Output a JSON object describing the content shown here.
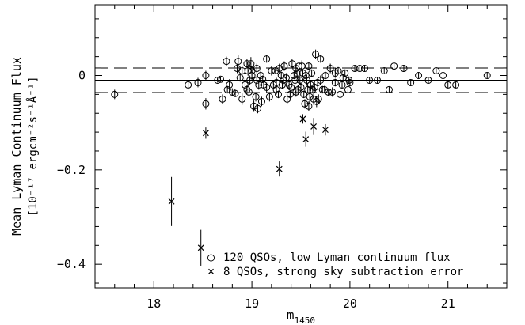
{
  "chart_data": {
    "type": "scatter",
    "xlabel_main": "m",
    "xlabel_sub": "1450",
    "ylabel_line1": "Mean Lyman Continuum Flux",
    "ylabel_line2": "[10⁻¹⁷ ergcm⁻²s⁻¹Å⁻¹]",
    "xlim": [
      17.4,
      21.6
    ],
    "ylim": [
      -0.45,
      0.15
    ],
    "x_ticks": [
      18,
      19,
      20,
      21
    ],
    "x_tick_labels": [
      "18",
      "19",
      "20",
      "21"
    ],
    "y_ticks": [
      0,
      -0.2,
      -0.4
    ],
    "y_tick_labels": [
      "0",
      "−0.2",
      "−0.4"
    ],
    "reference_lines": [
      {
        "style": "solid",
        "y": -0.01
      },
      {
        "style": "dashed",
        "y": 0.016
      },
      {
        "style": "dashed",
        "y": -0.036
      }
    ],
    "legend": {
      "position": "bottom-right",
      "entries": [
        {
          "marker": "○",
          "label": "120 QSOs, low Lyman continuum flux"
        },
        {
          "marker": "×",
          "label": "8 QSOs, strong sky subtraction error"
        }
      ]
    },
    "series": [
      {
        "marker": "circle",
        "points": [
          [
            17.6,
            -0.04,
            0.01
          ],
          [
            18.35,
            -0.02,
            0.01
          ],
          [
            18.45,
            -0.015,
            0.01
          ],
          [
            18.53,
            -0.06,
            0.012
          ],
          [
            18.53,
            0.0,
            0.01
          ],
          [
            18.65,
            -0.01,
            0.005
          ],
          [
            18.68,
            -0.008,
            0.005
          ],
          [
            18.7,
            -0.05,
            0.01
          ],
          [
            18.74,
            0.03,
            0.01
          ],
          [
            18.75,
            -0.03,
            0.008
          ],
          [
            18.77,
            -0.02,
            0.012
          ],
          [
            18.8,
            -0.035,
            0.008
          ],
          [
            18.83,
            -0.038,
            0.008
          ],
          [
            18.86,
            0.03,
            0.014
          ],
          [
            18.88,
            -0.005,
            0.008
          ],
          [
            18.9,
            0.01,
            0.01
          ],
          [
            18.9,
            -0.05,
            0.012
          ],
          [
            18.93,
            -0.02,
            0.014
          ],
          [
            18.95,
            0.025,
            0.01
          ],
          [
            18.96,
            0.01,
            0.01
          ],
          [
            18.97,
            -0.035,
            0.01
          ],
          [
            18.98,
            -0.01,
            0.01
          ],
          [
            18.99,
            0.025,
            0.014
          ],
          [
            19.0,
            0.0,
            0.012
          ],
          [
            19.0,
            0.01,
            0.01
          ],
          [
            19.02,
            -0.065,
            0.012
          ],
          [
            19.04,
            -0.045,
            0.01
          ],
          [
            19.05,
            -0.01,
            0.01
          ],
          [
            19.06,
            -0.07,
            0.01
          ],
          [
            19.07,
            -0.02,
            0.01
          ],
          [
            19.09,
            0.0,
            0.01
          ],
          [
            19.1,
            -0.055,
            0.01
          ],
          [
            19.11,
            -0.008,
            0.008
          ],
          [
            19.12,
            -0.02,
            0.008
          ],
          [
            19.15,
            0.035,
            0.008
          ],
          [
            19.18,
            -0.045,
            0.01
          ],
          [
            19.2,
            0.01,
            0.01
          ],
          [
            19.22,
            -0.02,
            0.01
          ],
          [
            19.24,
            0.01,
            0.006
          ],
          [
            19.25,
            -0.03,
            0.01
          ],
          [
            19.27,
            -0.04,
            0.008
          ],
          [
            19.28,
            0.015,
            0.01
          ],
          [
            19.3,
            0.0,
            0.008
          ],
          [
            19.31,
            -0.02,
            0.008
          ],
          [
            19.32,
            -0.01,
            0.012
          ],
          [
            19.33,
            0.02,
            0.01
          ],
          [
            19.36,
            -0.05,
            0.01
          ],
          [
            19.38,
            -0.02,
            0.01
          ],
          [
            19.39,
            -0.04,
            0.008
          ],
          [
            19.41,
            0.025,
            0.01
          ],
          [
            19.43,
            0.0,
            0.008
          ],
          [
            19.44,
            -0.01,
            0.01
          ],
          [
            19.45,
            0.015,
            0.01
          ],
          [
            19.46,
            0.005,
            0.008
          ],
          [
            19.47,
            -0.03,
            0.01
          ],
          [
            19.48,
            0.02,
            0.008
          ],
          [
            19.49,
            -0.01,
            0.01
          ],
          [
            19.5,
            -0.025,
            0.01
          ],
          [
            19.51,
            0.02,
            0.012
          ],
          [
            19.52,
            0.005,
            0.008
          ],
          [
            19.53,
            -0.04,
            0.008
          ],
          [
            19.54,
            -0.06,
            0.01
          ],
          [
            19.55,
            0.0,
            0.008
          ],
          [
            19.56,
            -0.01,
            0.012
          ],
          [
            19.57,
            -0.03,
            0.008
          ],
          [
            19.58,
            0.02,
            0.008
          ],
          [
            19.59,
            -0.045,
            0.014
          ],
          [
            19.6,
            -0.02,
            0.01
          ],
          [
            19.61,
            0.005,
            0.008
          ],
          [
            19.62,
            -0.03,
            0.008
          ],
          [
            19.63,
            -0.05,
            0.012
          ],
          [
            19.64,
            -0.025,
            0.008
          ],
          [
            19.65,
            0.045,
            0.01
          ],
          [
            19.66,
            -0.055,
            0.012
          ],
          [
            19.67,
            -0.015,
            0.008
          ],
          [
            19.68,
            -0.05,
            0.01
          ],
          [
            19.7,
            0.035,
            0.008
          ],
          [
            19.72,
            -0.03,
            0.008
          ],
          [
            19.74,
            -0.03,
            0.008
          ],
          [
            19.75,
            0.0,
            0.008
          ],
          [
            19.78,
            -0.035,
            0.008
          ],
          [
            19.8,
            0.015,
            0.01
          ],
          [
            19.82,
            -0.035,
            0.01
          ],
          [
            19.85,
            -0.015,
            0.008
          ],
          [
            19.88,
            0.01,
            0.008
          ],
          [
            19.9,
            -0.04,
            0.01
          ],
          [
            19.92,
            -0.02,
            0.008
          ],
          [
            19.93,
            -0.005,
            0.008
          ],
          [
            19.95,
            0.005,
            0.008
          ],
          [
            19.98,
            -0.03,
            0.008
          ],
          [
            19.99,
            -0.01,
            0.008
          ],
          [
            20.0,
            -0.015,
            0.008
          ],
          [
            20.05,
            0.015,
            0.006
          ],
          [
            20.1,
            0.015,
            0.006
          ],
          [
            20.15,
            0.015,
            0.006
          ],
          [
            20.2,
            -0.01,
            0.006
          ],
          [
            20.28,
            -0.01,
            0.006
          ],
          [
            20.35,
            0.01,
            0.006
          ],
          [
            20.4,
            -0.03,
            0.006
          ],
          [
            20.45,
            0.02,
            0.006
          ],
          [
            20.55,
            0.015,
            0.006
          ],
          [
            20.62,
            -0.015,
            0.006
          ],
          [
            20.7,
            0.0,
            0.006
          ],
          [
            20.8,
            -0.01,
            0.006
          ],
          [
            20.88,
            0.01,
            0.006
          ],
          [
            20.95,
            0.0,
            0.006
          ],
          [
            21.0,
            -0.02,
            0.006
          ],
          [
            21.08,
            -0.02,
            0.006
          ],
          [
            21.4,
            0.0,
            0.006
          ],
          [
            18.95,
            -0.03,
            0.01
          ],
          [
            19.15,
            -0.025,
            0.01
          ],
          [
            19.35,
            -0.005,
            0.01
          ],
          [
            19.45,
            -0.035,
            0.01
          ],
          [
            19.25,
            -0.015,
            0.01
          ],
          [
            18.85,
            0.015,
            0.01
          ],
          [
            19.05,
            0.015,
            0.01
          ],
          [
            19.7,
            -0.01,
            0.01
          ],
          [
            19.85,
            0.005,
            0.01
          ],
          [
            19.58,
            -0.065,
            0.01
          ],
          [
            19.4,
            -0.025,
            0.01
          ]
        ]
      },
      {
        "marker": "cross",
        "points": [
          [
            18.18,
            -0.267,
            0.052
          ],
          [
            18.48,
            -0.365,
            0.038
          ],
          [
            18.53,
            -0.122,
            0.012
          ],
          [
            19.28,
            -0.198,
            0.016
          ],
          [
            19.52,
            -0.092,
            0.01
          ],
          [
            19.55,
            -0.135,
            0.016
          ],
          [
            19.63,
            -0.108,
            0.018
          ],
          [
            19.75,
            -0.115,
            0.012
          ]
        ]
      }
    ]
  }
}
